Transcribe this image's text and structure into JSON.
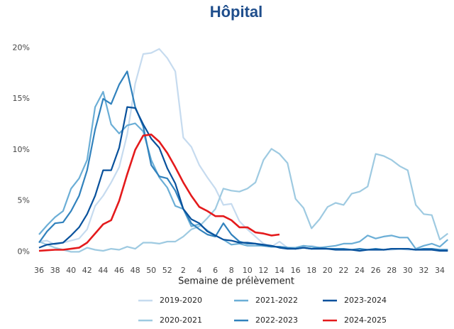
{
  "chart_data": {
    "type": "line",
    "title": "Hôpital",
    "x_label": "Semaine de prélèvement",
    "categories": [
      "36",
      null,
      "38",
      null,
      "40",
      null,
      "42",
      null,
      "44",
      null,
      "46",
      null,
      "48",
      null,
      "50",
      null,
      "52",
      null,
      "2",
      null,
      "4",
      null,
      "6",
      null,
      "8",
      null,
      "10",
      null,
      "12",
      null,
      "14",
      null,
      "16",
      null,
      "18",
      null,
      "20",
      null,
      "22",
      null,
      "24",
      null,
      "26",
      null,
      "28",
      null,
      "30",
      null,
      "32",
      null,
      "34",
      null
    ],
    "ylim": [
      -0.6,
      21
    ],
    "yticks": [
      {
        "value": 0,
        "label": "0%"
      },
      {
        "value": 5,
        "label": "5%"
      },
      {
        "value": 10,
        "label": "10%"
      },
      {
        "value": 15,
        "label": "15%"
      },
      {
        "value": 20,
        "label": "20%"
      }
    ],
    "grid": false,
    "series": [
      {
        "name": "2019-2020",
        "color": "#c6dbef",
        "values": [
          1.0,
          1.1,
          0.7,
          0.9,
          1.1,
          1.3,
          2.2,
          4.5,
          5.5,
          6.8,
          8.3,
          11.5,
          16.5,
          19.4,
          19.5,
          19.9,
          19.0,
          17.7,
          11.2,
          10.3,
          8.5,
          7.3,
          6.2,
          4.6,
          4.7,
          3.0,
          2.2,
          1.5,
          0.8,
          0.5,
          1.0,
          0.4,
          0.3,
          0.5,
          0.6,
          0.4,
          0.3,
          0.3,
          0.2,
          0.2,
          0.2,
          0.2,
          0.3,
          0.2,
          0.2,
          0.3,
          0.2,
          0.2,
          0.3,
          0.2,
          0.2,
          0.2
        ]
      },
      {
        "name": "2020-2021",
        "color": "#9ecae1",
        "values": [
          1.0,
          0.7,
          0.4,
          0.2,
          0.0,
          0.0,
          0.4,
          0.2,
          0.1,
          0.3,
          0.2,
          0.5,
          0.3,
          0.9,
          0.9,
          0.8,
          1.0,
          1.0,
          1.5,
          2.2,
          2.5,
          3.3,
          4.2,
          6.2,
          6.0,
          5.9,
          6.2,
          6.8,
          9.0,
          10.1,
          9.6,
          8.7,
          5.2,
          4.3,
          2.3,
          3.2,
          4.4,
          4.8,
          4.6,
          5.7,
          5.9,
          6.4,
          9.6,
          9.4,
          9.0,
          8.4,
          8.0,
          4.6,
          3.7,
          3.6,
          1.2,
          1.8
        ]
      },
      {
        "name": "2021-2022",
        "color": "#6baed6",
        "values": [
          1.7,
          2.6,
          3.4,
          4.0,
          6.2,
          7.2,
          9.0,
          14.2,
          15.7,
          12.5,
          11.6,
          12.4,
          12.6,
          11.8,
          9.0,
          7.3,
          6.3,
          4.5,
          4.2,
          2.5,
          2.7,
          2.1,
          1.6,
          1.2,
          0.7,
          0.8,
          0.6,
          0.6,
          0.6,
          0.5,
          0.5,
          0.4,
          0.4,
          0.6,
          0.5,
          0.4,
          0.5,
          0.6,
          0.8,
          0.8,
          1.0,
          1.6,
          1.3,
          1.5,
          1.6,
          1.4,
          1.4,
          0.3,
          0.6,
          0.8,
          0.5,
          1.2
        ]
      },
      {
        "name": "2022-2023",
        "color": "#3182bd",
        "values": [
          0.9,
          2.0,
          2.8,
          2.9,
          4.0,
          5.5,
          8.0,
          12.0,
          15.0,
          14.5,
          16.4,
          17.7,
          14.2,
          12.3,
          8.5,
          7.4,
          7.2,
          6.0,
          4.2,
          2.8,
          2.2,
          1.7,
          1.5,
          2.8,
          1.7,
          1.0,
          0.8,
          0.8,
          0.6,
          0.5,
          0.5,
          0.4,
          0.3,
          0.4,
          0.3,
          0.4,
          0.3,
          0.3,
          0.3,
          0.2,
          0.3,
          0.2,
          0.3,
          0.2,
          0.3,
          0.3,
          0.3,
          0.2,
          0.3,
          0.3,
          0.2,
          0.2
        ]
      },
      {
        "name": "2023-2024",
        "color": "#08519c",
        "values": [
          0.4,
          0.7,
          0.8,
          0.9,
          1.6,
          2.4,
          3.7,
          5.5,
          8.0,
          8.0,
          10.2,
          14.2,
          14.1,
          12.5,
          11.1,
          10.2,
          8.2,
          6.7,
          4.2,
          3.2,
          2.8,
          2.0,
          1.6,
          1.2,
          1.1,
          0.9,
          0.9,
          0.8,
          0.7,
          0.6,
          0.4,
          0.3,
          0.3,
          0.4,
          0.3,
          0.3,
          0.3,
          0.2,
          0.2,
          0.2,
          0.1,
          0.2,
          0.2,
          0.2,
          0.3,
          0.3,
          0.3,
          0.2,
          0.2,
          0.2,
          0.1,
          0.1
        ]
      },
      {
        "name": "2024-2025",
        "color": "#e41a1c",
        "values": [
          0.1,
          0.15,
          0.2,
          0.2,
          0.3,
          0.4,
          0.9,
          1.8,
          2.7,
          3.1,
          5.0,
          7.6,
          10.0,
          11.4,
          11.5,
          10.8,
          9.7,
          8.3,
          6.8,
          5.5,
          4.4,
          4.0,
          3.5,
          3.5,
          3.1,
          2.4,
          2.4,
          1.9,
          1.8,
          1.6,
          1.7,
          null,
          null,
          null,
          null,
          null,
          null,
          null,
          null,
          null,
          null,
          null,
          null,
          null,
          null,
          null,
          null,
          null,
          null,
          null,
          null,
          null
        ]
      }
    ]
  }
}
